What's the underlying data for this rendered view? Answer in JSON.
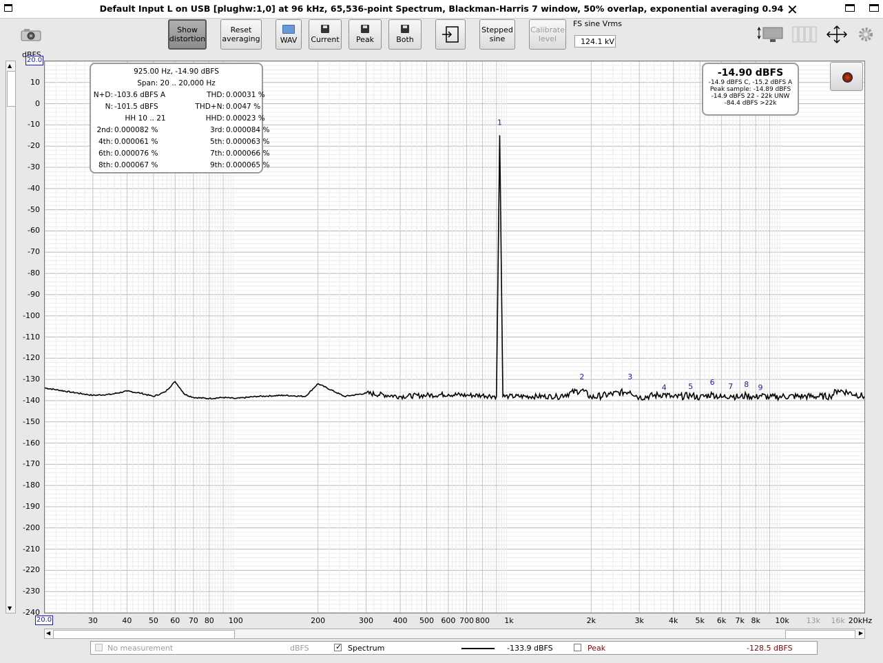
{
  "window": {
    "title": "Default Input L on USB [plughw:1,0] at 96 kHz, 65,536-point Spectrum, Blackman-Harris 7 window, 50% overlap, exponential averaging 0.94",
    "close_label": "✕"
  },
  "toolbar": {
    "show_distortion_l1": "Show",
    "show_distortion_l2": "distortion",
    "reset_l1": "Reset",
    "reset_l2": "averaging",
    "wav": "WAV",
    "current": "Current",
    "peak": "Peak",
    "both": "Both",
    "stepped_l1": "Stepped",
    "stepped_l2": "sine",
    "calibrate_l1": "Calibrate",
    "calibrate_l2": "level",
    "fs_label": "FS sine Vrms",
    "fs_value": "124.1 kV"
  },
  "chart": {
    "ylabel": "dBFS",
    "y_top_box": "20.0",
    "x_left_box": "20.0",
    "y_ticks": [
      "10",
      "0",
      "-10",
      "-20",
      "-30",
      "-40",
      "-50",
      "-60",
      "-70",
      "-80",
      "-90",
      "-100",
      "-110",
      "-120",
      "-130",
      "-140",
      "-150",
      "-160",
      "-170",
      "-180",
      "-190",
      "-200",
      "-210",
      "-220",
      "-230",
      "-240"
    ],
    "x_ticks": [
      {
        "f": 30,
        "t": "30"
      },
      {
        "f": 40,
        "t": "40"
      },
      {
        "f": 50,
        "t": "50"
      },
      {
        "f": 60,
        "t": "60"
      },
      {
        "f": 70,
        "t": "70"
      },
      {
        "f": 80,
        "t": "80"
      },
      {
        "f": 100,
        "t": "100"
      },
      {
        "f": 200,
        "t": "200"
      },
      {
        "f": 300,
        "t": "300"
      },
      {
        "f": 400,
        "t": "400"
      },
      {
        "f": 500,
        "t": "500"
      },
      {
        "f": 600,
        "t": "600"
      },
      {
        "f": 700,
        "t": "700"
      },
      {
        "f": 800,
        "t": "800"
      },
      {
        "f": 1000,
        "t": "1k"
      },
      {
        "f": 2000,
        "t": "2k"
      },
      {
        "f": 3000,
        "t": "3k"
      },
      {
        "f": 4000,
        "t": "4k"
      },
      {
        "f": 5000,
        "t": "5k"
      },
      {
        "f": 6000,
        "t": "6k"
      },
      {
        "f": 7000,
        "t": "7k"
      },
      {
        "f": 8000,
        "t": "8k"
      },
      {
        "f": 10000,
        "t": "10k"
      },
      {
        "f": 13000,
        "t": "13k",
        "grey": true
      },
      {
        "f": 16000,
        "t": "16k",
        "grey": true
      },
      {
        "f": 20000,
        "t": "20kHz"
      }
    ]
  },
  "chart_data": {
    "type": "line",
    "xlabel": "",
    "ylabel": "dBFS",
    "xscale": "log",
    "xlim": [
      20,
      20000
    ],
    "ylim": [
      -240,
      20
    ],
    "grid": true,
    "series": [
      {
        "name": "Spectrum",
        "x": [
          20,
          25,
          30,
          35,
          40,
          45,
          50,
          55,
          60,
          65,
          70,
          80,
          90,
          100,
          120,
          150,
          180,
          200,
          250,
          300,
          400,
          500,
          600,
          700,
          800,
          900,
          925,
          950,
          1000,
          1500,
          1850,
          2000,
          2775,
          3000,
          3700,
          4000,
          4625,
          5000,
          5550,
          6000,
          6475,
          7000,
          7400,
          8000,
          8325,
          9000,
          10000,
          12000,
          15000,
          16000,
          20000
        ],
        "y": [
          -134,
          -136,
          -137.5,
          -137,
          -135.5,
          -136.5,
          -138,
          -136,
          -131,
          -137,
          -138.5,
          -139,
          -138.5,
          -139,
          -138,
          -137.5,
          -138,
          -132,
          -138,
          -136.5,
          -138,
          -137.5,
          -137,
          -137.5,
          -137.5,
          -138,
          -14.9,
          -138,
          -138,
          -138,
          -135,
          -138.5,
          -135.5,
          -138.5,
          -137,
          -138.5,
          -137.5,
          -138.5,
          -137,
          -138.5,
          -137.5,
          -138.5,
          -137.5,
          -138.5,
          -137.5,
          -138.5,
          -138,
          -138,
          -138,
          -135,
          -138
        ]
      }
    ],
    "markers": [
      {
        "label": "1",
        "f": 925,
        "db": -10
      },
      {
        "label": "2",
        "f": 1850,
        "db": -130
      },
      {
        "label": "3",
        "f": 2775,
        "db": -130
      },
      {
        "label": "4",
        "f": 3700,
        "db": -135
      },
      {
        "label": "5",
        "f": 4625,
        "db": -134.5
      },
      {
        "label": "6",
        "f": 5550,
        "db": -132.5
      },
      {
        "label": "7",
        "f": 6475,
        "db": -134.5
      },
      {
        "label": "8",
        "f": 7400,
        "db": -133.5
      },
      {
        "label": "9",
        "f": 8325,
        "db": -135
      }
    ]
  },
  "distortion_box": {
    "line1": "925.00 Hz, -14.90 dBFS",
    "line2": "Span: 20 .. 20,000 Hz",
    "rows": [
      {
        "k1": "N+D:",
        "v1": "-103.6 dBFS A",
        "k2": "THD:",
        "v2": "0.00031 %"
      },
      {
        "k1": "N:",
        "v1": "-101.5 dBFS",
        "k2": "THD+N:",
        "v2": "0.0047 %"
      },
      {
        "k1": "",
        "v1": "HH 10 .. 21",
        "k2": "HHD:",
        "v2": "0.00023 %"
      },
      {
        "k1": "2nd:",
        "v1": "0.000082 %",
        "k2": "3rd:",
        "v2": "0.000084 %"
      },
      {
        "k1": "4th:",
        "v1": "0.000061 %",
        "k2": "5th:",
        "v2": "0.000063 %"
      },
      {
        "k1": "6th:",
        "v1": "0.000076 %",
        "k2": "7th:",
        "v2": "0.000066 %"
      },
      {
        "k1": "8th:",
        "v1": "0.000067 %",
        "k2": "9th:",
        "v2": "0.000065 %"
      }
    ]
  },
  "level_box": {
    "main": "-14.90 dBFS",
    "l1": "-14.9 dBFS C, -15.2 dBFS A",
    "l2": "Peak sample: -14.89 dBFS",
    "l3": "-14.9 dBFS 22 - 22k UNW",
    "l4": "-84.4 dBFS >22k"
  },
  "legend": {
    "no_measurement": "No measurement",
    "unit": "dBFS",
    "spectrum": "Spectrum",
    "spectrum_value": "-133.9 dBFS",
    "peak": "Peak",
    "peak_value": "-128.5 dBFS"
  },
  "colors": {
    "marker": "#1a1ab0",
    "peak": "#8b0000",
    "trace": "#000000"
  },
  "icons": [
    "camera-icon",
    "app-window-icon",
    "restore-window-icon",
    "window-icon",
    "close-icon",
    "record-icon",
    "gear-icon",
    "move-icon",
    "layout-icon",
    "columns-icon",
    "export-icon",
    "save-icon",
    "folder-icon"
  ]
}
